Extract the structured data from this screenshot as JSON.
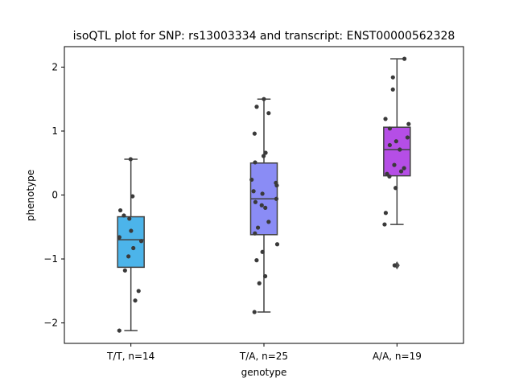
{
  "chart_data": {
    "type": "box",
    "title": "isoQTL plot for SNP: rs13003334 and transcript: ENST00000562328",
    "xlabel": "genotype",
    "ylabel": "phenotype",
    "ylim": [
      -2.32,
      2.32
    ],
    "yticks": [
      -2,
      -1,
      0,
      1,
      2
    ],
    "yticklabels": [
      "−2",
      "−1",
      "0",
      "1",
      "2"
    ],
    "grid": false,
    "categories": [
      "T/T, n=14",
      "T/A, n=25",
      "A/A, n=19"
    ],
    "colors": [
      "#4cb4ea",
      "#8a8cf5",
      "#b54ee6"
    ],
    "boxes": [
      {
        "whisker_low": -2.12,
        "q1": -1.13,
        "median": -0.7,
        "q3": -0.34,
        "whisker_high": 0.56,
        "outliers": []
      },
      {
        "whisker_low": -1.83,
        "q1": -0.62,
        "median": -0.06,
        "q3": 0.5,
        "whisker_high": 1.5,
        "outliers": []
      },
      {
        "whisker_low": -0.46,
        "q1": 0.3,
        "median": 0.71,
        "q3": 1.06,
        "whisker_high": 2.13,
        "outliers": [
          -1.1
        ]
      }
    ],
    "points": [
      [
        0.56,
        -0.02,
        -0.24,
        -0.32,
        -0.37,
        -0.56,
        -0.66,
        -0.72,
        -0.83,
        -0.96,
        -1.18,
        -1.5,
        -1.65,
        -2.12
      ],
      [
        1.5,
        1.38,
        1.28,
        0.96,
        0.66,
        0.61,
        0.51,
        0.24,
        0.19,
        0.15,
        0.06,
        0.02,
        -0.06,
        -0.11,
        -0.16,
        -0.2,
        -0.42,
        -0.51,
        -0.6,
        -0.77,
        -0.89,
        -1.02,
        -1.27,
        -1.38,
        -1.83
      ],
      [
        2.13,
        1.84,
        1.65,
        1.19,
        1.11,
        1.04,
        0.9,
        0.84,
        0.78,
        0.71,
        0.47,
        0.42,
        0.37,
        0.33,
        0.29,
        0.11,
        -0.28,
        -0.46,
        -1.1
      ]
    ]
  }
}
